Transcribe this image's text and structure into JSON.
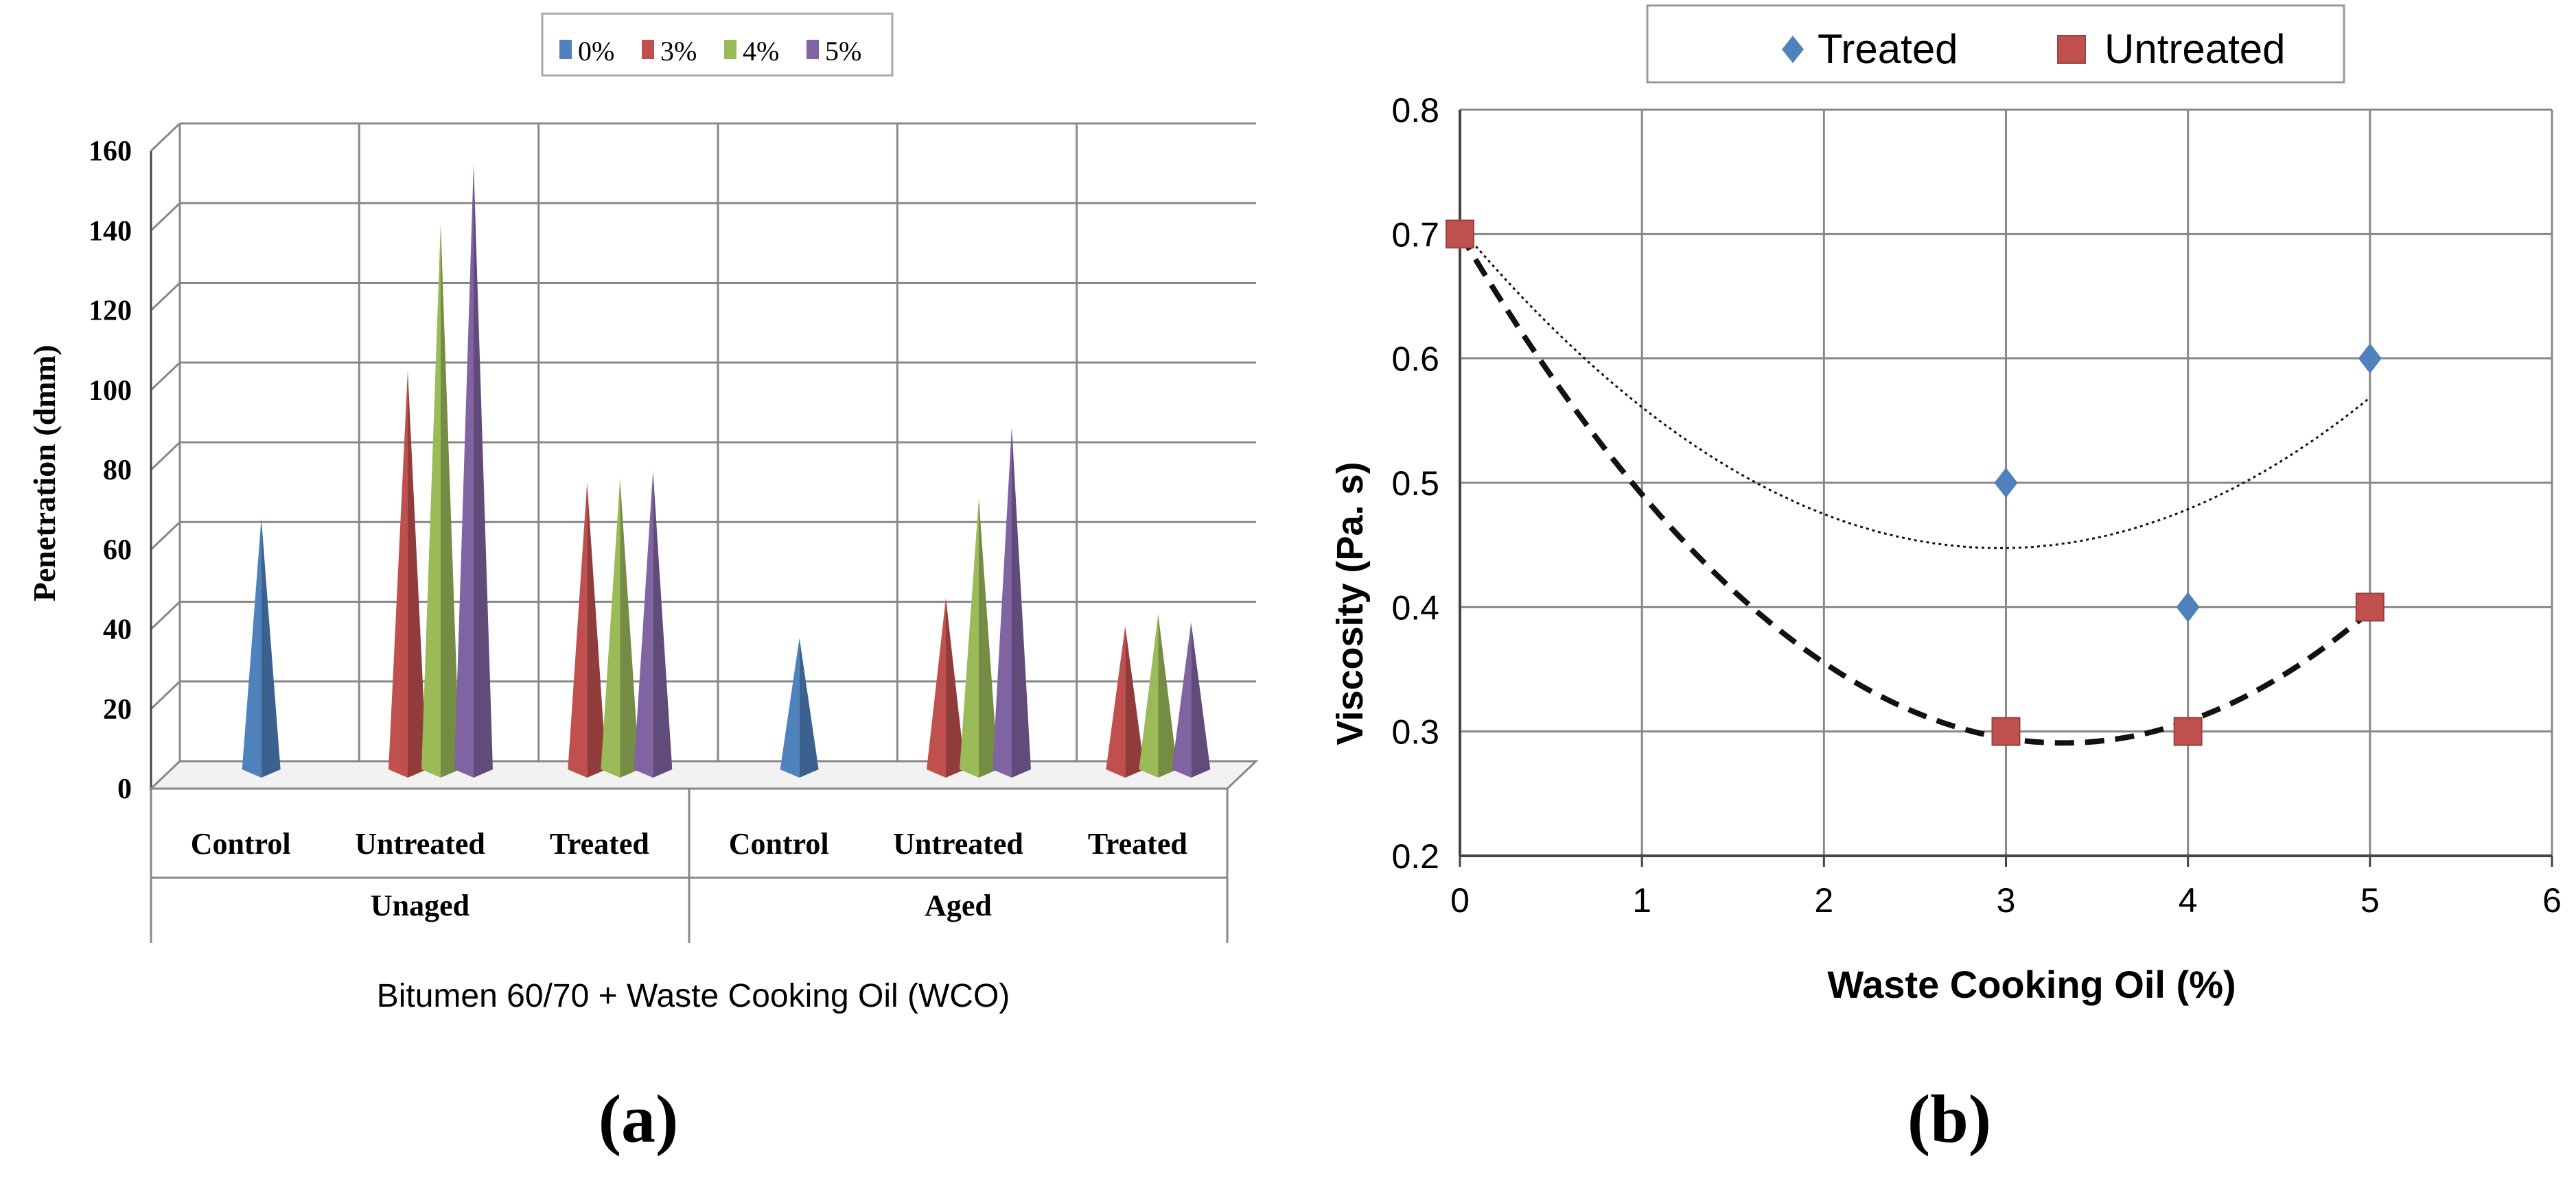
{
  "colors": {
    "s0": "#4f81bd",
    "s3": "#c0504d",
    "s4": "#9bbb59",
    "s5": "#8064a2",
    "treated": "#4f81bd",
    "untreated": "#c0504d",
    "grid": "#888888",
    "axis": "#444444",
    "text": "#000000"
  },
  "chart_data": [
    {
      "type": "bar",
      "panel_label": "(a)",
      "legend": [
        "0%",
        "3%",
        "4%",
        "5%"
      ],
      "legend_placement": "top-center",
      "ylabel": "Penetration (dmm)",
      "xlabel": "Bitumen 60/70 + Waste Cooking Oil (WCO)",
      "ylim": [
        0,
        160
      ],
      "yticks": [
        "0",
        "20",
        "40",
        "60",
        "80",
        "100",
        "120",
        "140",
        "160"
      ],
      "groups": [
        {
          "label": "Unaged",
          "categories": [
            "Control",
            "Untreated",
            "Treated"
          ]
        },
        {
          "label": "Aged",
          "categories": [
            "Control",
            "Untreated",
            "Treated"
          ]
        }
      ],
      "categories": [
        "Control",
        "Untreated",
        "Treated",
        "Control",
        "Untreated",
        "Treated"
      ],
      "series": [
        {
          "name": "0%",
          "values": [
            63,
            null,
            null,
            33,
            null,
            null
          ]
        },
        {
          "name": "3%",
          "values": [
            null,
            100,
            72,
            null,
            43,
            36
          ]
        },
        {
          "name": "4%",
          "values": [
            null,
            137,
            73,
            null,
            68,
            39
          ]
        },
        {
          "name": "5%",
          "values": [
            null,
            152,
            75,
            null,
            86,
            37
          ]
        }
      ]
    },
    {
      "type": "scatter",
      "panel_label": "(b)",
      "legend": [
        "Treated",
        "Untreated"
      ],
      "legend_placement": "top-center",
      "xlabel": "Waste Cooking Oil (%)",
      "ylabel": "Viscosity (Pa. s)",
      "xlim": [
        0,
        6
      ],
      "ylim": [
        0.2,
        0.8
      ],
      "xticks": [
        "0",
        "1",
        "2",
        "3",
        "4",
        "5",
        "6"
      ],
      "yticks": [
        "0.2",
        "0.3",
        "0.4",
        "0.5",
        "0.6",
        "0.7",
        "0.8"
      ],
      "grid": true,
      "series": [
        {
          "name": "Treated",
          "marker": "diamond",
          "trendline": "polynomial-dotted",
          "x": [
            0,
            3,
            4,
            5
          ],
          "y": [
            0.7,
            0.5,
            0.4,
            0.6
          ]
        },
        {
          "name": "Untreated",
          "marker": "square",
          "trendline": "polynomial-dashed",
          "x": [
            0,
            3,
            4,
            5
          ],
          "y": [
            0.7,
            0.3,
            0.3,
            0.4
          ]
        }
      ]
    }
  ]
}
